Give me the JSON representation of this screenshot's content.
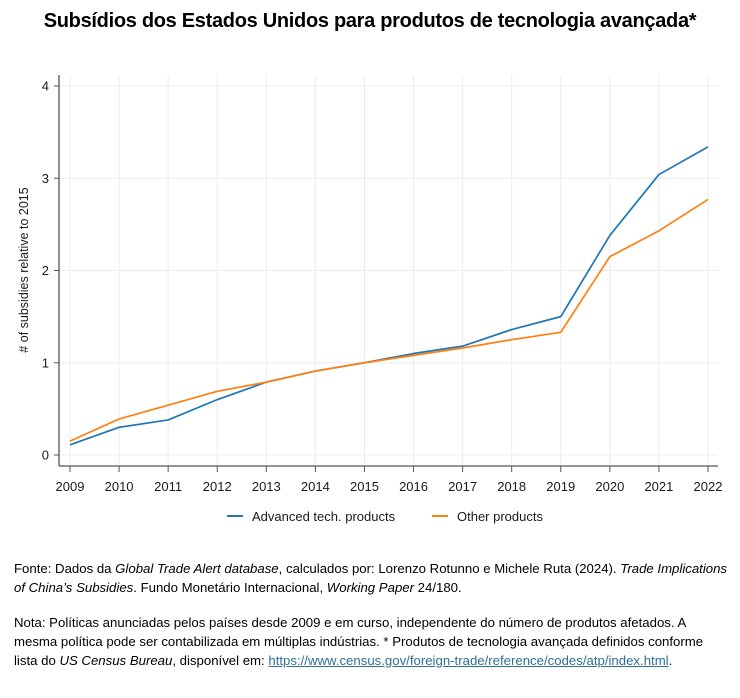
{
  "title": "Subsídios dos Estados Unidos para produtos de tecnologia avançada*",
  "chart_data": {
    "type": "line",
    "title": "Subsídios dos Estados Unidos para produtos de tecnologia avançada*",
    "xlabel": "",
    "ylabel": "# of subsidies relative to 2015",
    "x": [
      2009,
      2010,
      2011,
      2012,
      2013,
      2014,
      2015,
      2016,
      2017,
      2018,
      2019,
      2020,
      2021,
      2022
    ],
    "xticks": [
      "2009",
      "2010",
      "2011",
      "2012",
      "2013",
      "2014",
      "2015",
      "2016",
      "2017",
      "2018",
      "2019",
      "2020",
      "2021",
      "2022"
    ],
    "yticks": [
      "0",
      "1",
      "2",
      "3",
      "4"
    ],
    "ylim": [
      0,
      4
    ],
    "grid": true,
    "legend_position": "bottom",
    "series": [
      {
        "name": "Advanced tech. products",
        "color": "#1f77b4",
        "values": [
          0.11,
          0.3,
          0.38,
          0.6,
          0.79,
          0.91,
          1.0,
          1.1,
          1.18,
          1.36,
          1.5,
          2.38,
          3.04,
          3.34
        ]
      },
      {
        "name": "Other products",
        "color": "#ff7f0e",
        "values": [
          0.15,
          0.39,
          0.54,
          0.69,
          0.79,
          0.91,
          1.0,
          1.08,
          1.16,
          1.25,
          1.33,
          2.15,
          2.43,
          2.77
        ]
      }
    ]
  },
  "source": {
    "prefix": "Fonte: Dados da ",
    "database": "Global Trade Alert database",
    "middle": ", calculados por: Lorenzo Rotunno e Michele Ruta (2024). ",
    "paper_title": "Trade Implications of China’s Subsidies",
    "after_title": ". Fundo Monetário Internacional, ",
    "series_name": "Working Paper",
    "number": " 24/180."
  },
  "note": {
    "text1": "Nota: Políticas anunciadas pelos países desde 2009 e em curso, independente do número de produtos afetados. A mesma política pode ser contabilizada em múltiplas indústrias. * Produtos de tecnologia avançada definidos conforme lista do ",
    "bureau": "US Census Bureau",
    "text2": ", disponível em: ",
    "link": "https://www.census.gov/foreign-trade/reference/codes/atp/index.html",
    "end": "."
  }
}
